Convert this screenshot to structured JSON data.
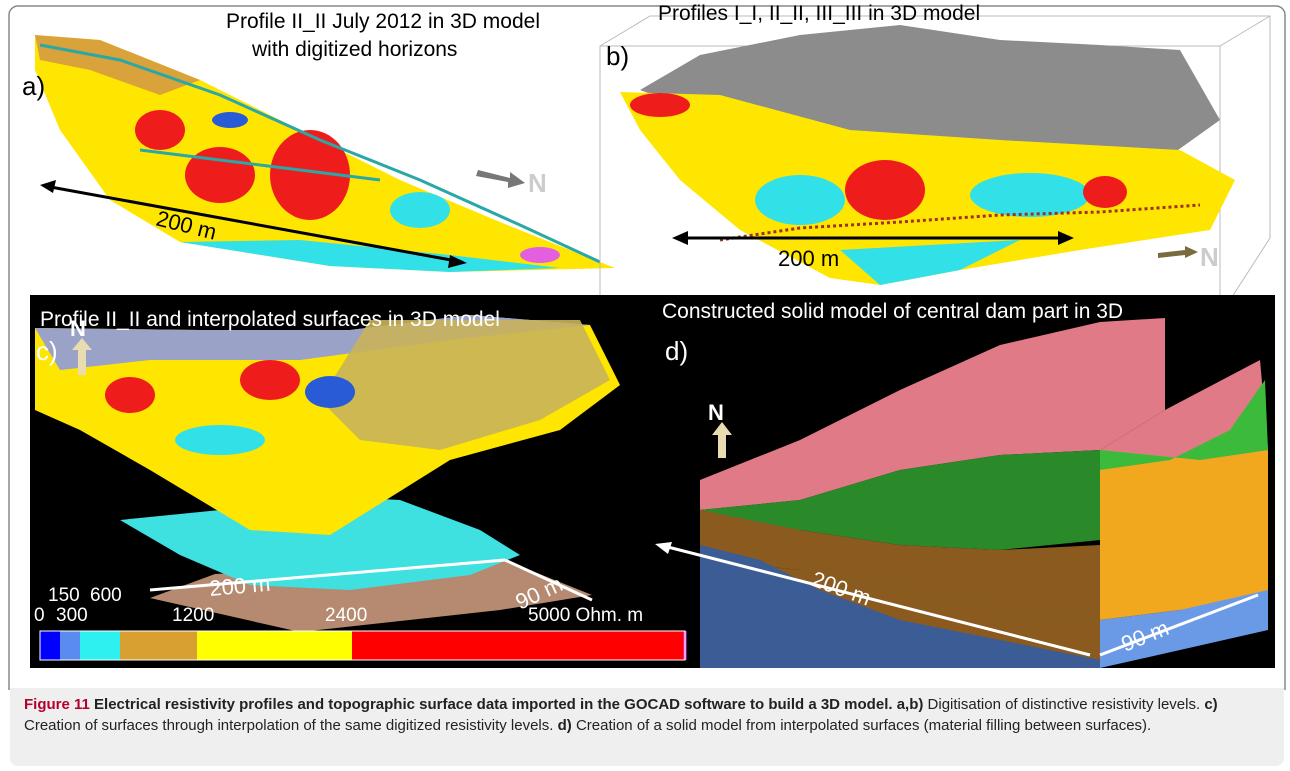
{
  "figure": {
    "panels": [
      {
        "label": "a)",
        "title": [
          "Profile II_II July 2012 in 3D model",
          "with digitized horizons"
        ],
        "scale": "200 m",
        "north": "N"
      },
      {
        "label": "b)",
        "title": "Profiles I_I, II_II, III_III  in 3D model",
        "scale": "200 m",
        "north": "N"
      },
      {
        "label": "c)",
        "title": "Profile II_II and interpolated surfaces in 3D model",
        "north": "N",
        "scale": "200 m",
        "scale2": "90 m"
      },
      {
        "label": "d)",
        "title": "Constructed solid model of central dam part in 3D",
        "north": "N",
        "scale": "200 m",
        "scale2": "90 m"
      }
    ],
    "colorbar": {
      "labels": [
        "0",
        "150",
        "300",
        "600",
        "1200",
        "2400",
        "5000 Ohm. m"
      ]
    }
  },
  "caption": {
    "figure_label": "Figure 11",
    "title": "Electrical resistivity profiles and topographic surface data imported in the GOCAD software to build a 3D model.",
    "parts": [
      {
        "label": "a,b)",
        "text": "Digitisation of distinctive resistivity levels."
      },
      {
        "label": "c)",
        "text": "Creation of surfaces through interpolation of the same digitized resistivity levels."
      },
      {
        "label": "d)",
        "text": "Creation of a solid model from interpolated surfaces (material filling between surfaces)."
      }
    ]
  }
}
